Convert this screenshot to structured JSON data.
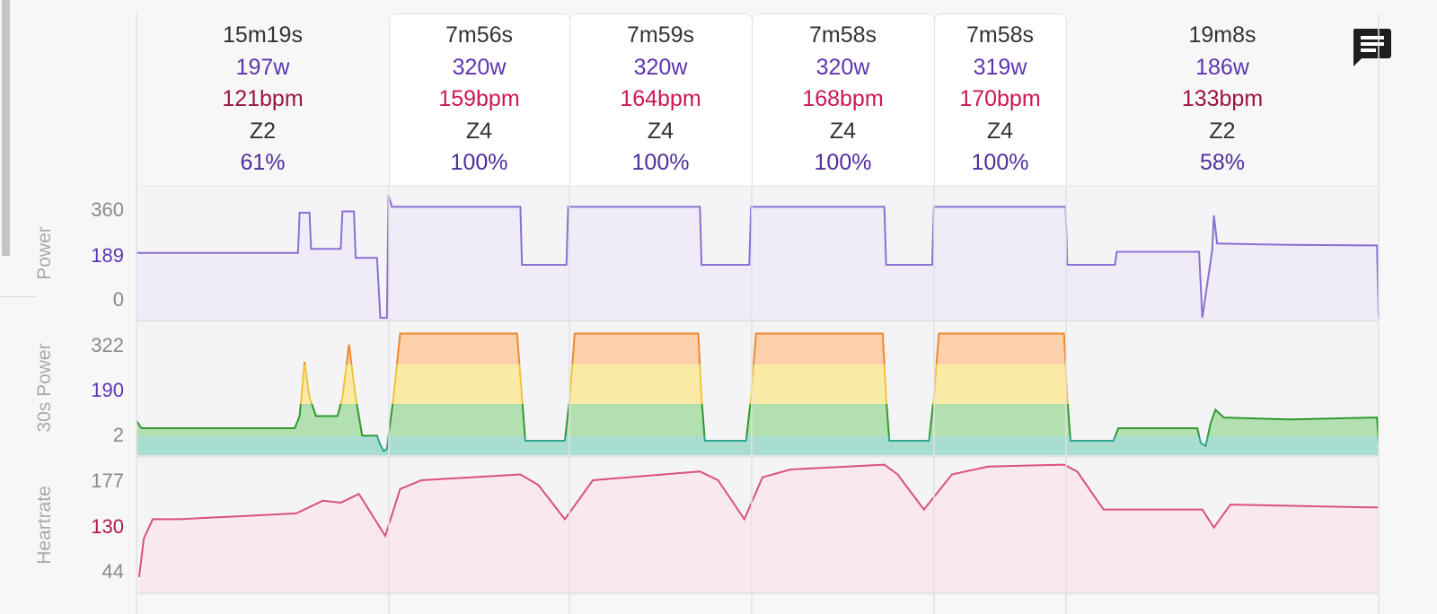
{
  "intervals": [
    {
      "duration": "15m19s",
      "watts": "197w",
      "bpm": "121bpm",
      "zone": "Z2",
      "percent": "61%",
      "highlighted": false
    },
    {
      "duration": "7m56s",
      "watts": "320w",
      "bpm": "159bpm",
      "zone": "Z4",
      "percent": "100%",
      "highlighted": true
    },
    {
      "duration": "7m59s",
      "watts": "320w",
      "bpm": "164bpm",
      "zone": "Z4",
      "percent": "100%",
      "highlighted": true
    },
    {
      "duration": "7m58s",
      "watts": "320w",
      "bpm": "168bpm",
      "zone": "Z4",
      "percent": "100%",
      "highlighted": true
    },
    {
      "duration": "7m58s",
      "watts": "319w",
      "bpm": "170bpm",
      "zone": "Z4",
      "percent": "100%",
      "highlighted": true
    },
    {
      "duration": "19m8s",
      "watts": "186w",
      "bpm": "133bpm",
      "zone": "Z2",
      "percent": "58%",
      "highlighted": false
    }
  ],
  "icons": {
    "comment": "comment-icon"
  },
  "colors": {
    "power": "#8c6fd1",
    "heartrate": "#d9527a",
    "zone_teal": "#a8ddd0",
    "zone_green": "#b3e0b0",
    "zone_yellow": "#fbe9a6",
    "zone_orange": "#fcd0ab"
  },
  "chart_data": [
    {
      "type": "line",
      "ylabel": "Power",
      "yticks": [
        "360",
        "189",
        "0"
      ],
      "xunit": "min",
      "x": [
        0,
        9.8,
        9.9,
        10.5,
        10.6,
        12.4,
        12.5,
        13.2,
        13.3,
        14.6,
        14.8,
        15.2,
        15.3,
        15.5,
        23.3,
        23.4,
        26.1,
        26.2,
        34.2,
        34.3,
        37.2,
        37.3,
        45.4,
        45.5,
        48.3,
        48.4,
        56.4,
        56.5,
        59.4,
        59.5,
        64.5,
        64.7,
        65.3,
        65.4,
        65.6,
        70,
        75.3,
        75.4
      ],
      "y": [
        190,
        190,
        340,
        340,
        205,
        205,
        345,
        345,
        175,
        175,
        0,
        0,
        405,
        362,
        362,
        155,
        155,
        362,
        362,
        155,
        155,
        362,
        362,
        155,
        155,
        362,
        362,
        155,
        155,
        194,
        194,
        0,
        200,
        330,
        225,
        220,
        218,
        0
      ]
    },
    {
      "type": "area",
      "ylabel": "30s Power",
      "yticks": [
        "322",
        "190",
        "2"
      ],
      "xunit": "min",
      "x": [
        0,
        0.3,
        9.6,
        9.9,
        10.2,
        10.5,
        10.9,
        12.2,
        12.5,
        12.9,
        13.3,
        13.7,
        14.6,
        14.8,
        15.0,
        15.2,
        15.6,
        16.0,
        23.1,
        23.4,
        23.6,
        26.0,
        26.3,
        26.6,
        34.1,
        34.3,
        34.5,
        37.0,
        37.3,
        37.6,
        45.3,
        45.5,
        45.7,
        48.1,
        48.4,
        48.7,
        56.3,
        56.5,
        56.7,
        59.3,
        59.6,
        64.4,
        64.6,
        64.9,
        65.2,
        65.5,
        66,
        70,
        75.3,
        75.4
      ],
      "y": [
        205,
        190,
        190,
        215,
        305,
        250,
        215,
        215,
        250,
        340,
        250,
        160,
        160,
        100,
        40,
        60,
        250,
        362,
        362,
        250,
        140,
        140,
        250,
        362,
        362,
        250,
        140,
        140,
        250,
        362,
        362,
        250,
        140,
        140,
        250,
        362,
        362,
        250,
        140,
        140,
        190,
        190,
        120,
        90,
        200,
        228,
        212,
        208,
        212,
        120
      ]
    },
    {
      "type": "line",
      "ylabel": "Heartrate",
      "yticks": [
        "177",
        "130",
        "44"
      ],
      "xunit": "min",
      "x": [
        0.16,
        0.44,
        0.98,
        2.6,
        9.7,
        11.3,
        12.4,
        13.5,
        15.1,
        16.0,
        17.3,
        23.3,
        24.4,
        26.0,
        27.7,
        34.2,
        35.3,
        36.9,
        38.0,
        39.7,
        45.4,
        46.2,
        47.8,
        49.5,
        51.7,
        56.3,
        57.1,
        58.7,
        64.7,
        65.4,
        66.4,
        75.4
      ],
      "y": [
        40,
        106,
        137,
        137,
        143,
        156,
        154,
        163,
        111,
        168,
        177,
        183,
        172,
        137,
        177,
        186,
        177,
        137,
        180,
        188,
        193,
        183,
        147,
        183,
        191,
        193,
        186,
        147,
        147,
        127,
        152,
        149
      ]
    }
  ]
}
